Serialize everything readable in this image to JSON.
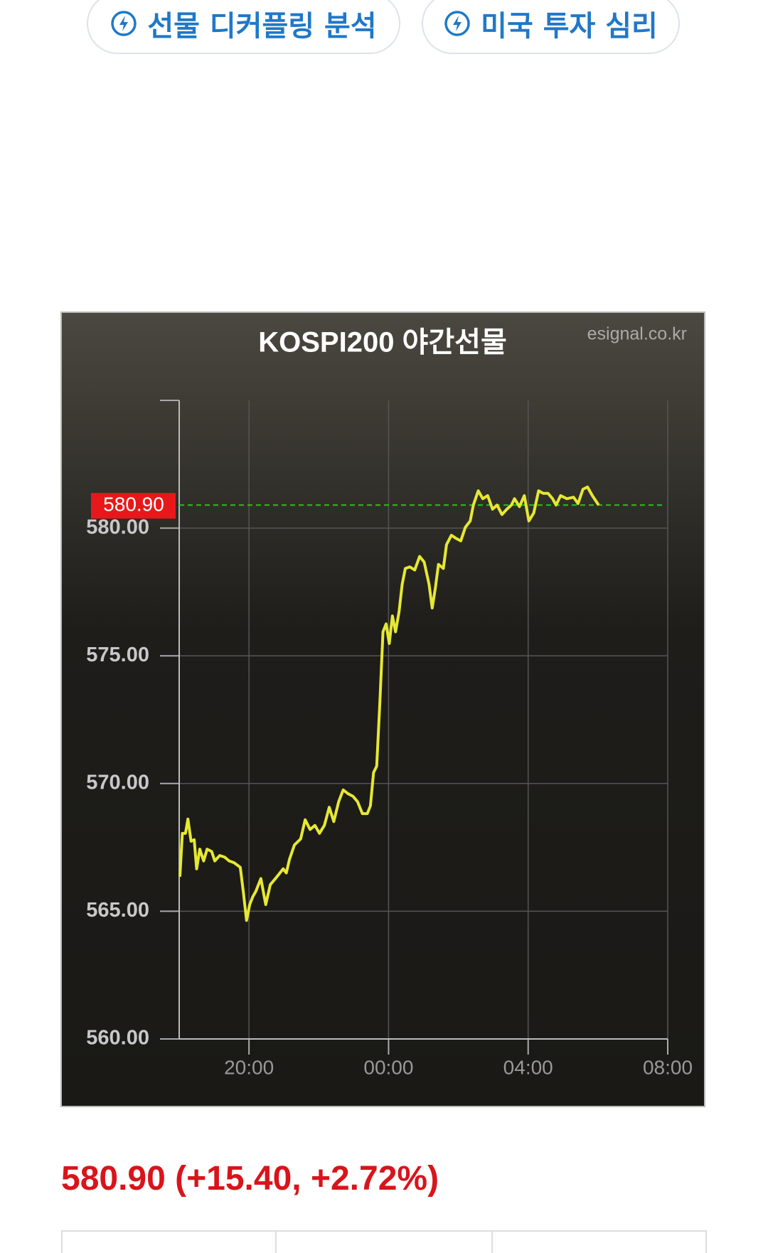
{
  "buttons": [
    "선물 디커플링 분석",
    "미국 투자 심리"
  ],
  "chart_data": {
    "type": "line",
    "title": "KOSPI200 야간선물",
    "source": "esignal.co.kr",
    "x": [
      18.02,
      18.09,
      18.18,
      18.25,
      18.34,
      18.43,
      18.5,
      18.59,
      18.7,
      18.8,
      18.93,
      19.02,
      19.16,
      19.3,
      19.43,
      19.57,
      19.75,
      19.84,
      19.93,
      20.02,
      20.11,
      20.2,
      20.34,
      20.48,
      20.61,
      20.8,
      20.98,
      21.07,
      21.16,
      21.3,
      21.48,
      21.61,
      21.75,
      21.89,
      22.02,
      22.16,
      22.3,
      22.43,
      22.57,
      22.7,
      22.84,
      22.98,
      23.11,
      23.25,
      23.39,
      23.48,
      23.57,
      23.66,
      23.75,
      23.84,
      23.93,
      24.02,
      24.11,
      24.2,
      24.3,
      24.39,
      24.48,
      24.61,
      24.75,
      24.89,
      25.02,
      25.16,
      25.25,
      25.34,
      25.43,
      25.57,
      25.66,
      25.8,
      25.93,
      26.07,
      26.2,
      26.34,
      26.43,
      26.57,
      26.7,
      26.84,
      26.98,
      27.11,
      27.25,
      27.39,
      27.52,
      27.61,
      27.75,
      27.89,
      28.02,
      28.16,
      28.3,
      28.43,
      28.57,
      28.7,
      28.8,
      28.93,
      29.11,
      29.3,
      29.43,
      29.57,
      29.7,
      29.84,
      30.02
    ],
    "series": [
      {
        "name": "KOSPI200 야간선물",
        "color": "#e6e833",
        "values": [
          566.35,
          568.05,
          568.05,
          568.61,
          567.74,
          567.8,
          566.66,
          567.43,
          566.97,
          567.43,
          567.34,
          566.97,
          567.18,
          567.12,
          566.97,
          566.9,
          566.72,
          565.73,
          564.64,
          565.26,
          565.57,
          565.79,
          566.28,
          565.26,
          566.04,
          566.35,
          566.66,
          566.5,
          567.03,
          567.59,
          567.83,
          568.58,
          568.2,
          568.36,
          568.05,
          568.36,
          569.07,
          568.51,
          569.29,
          569.75,
          569.6,
          569.5,
          569.29,
          568.82,
          568.82,
          569.13,
          570.43,
          570.68,
          573.16,
          575.94,
          576.25,
          575.48,
          576.56,
          575.94,
          576.72,
          577.8,
          578.42,
          578.48,
          578.36,
          578.89,
          578.67,
          577.8,
          576.87,
          577.65,
          578.58,
          578.42,
          579.35,
          579.72,
          579.6,
          579.5,
          580.03,
          580.28,
          580.9,
          581.46,
          581.15,
          581.27,
          580.74,
          580.9,
          580.53,
          580.74,
          580.9,
          581.15,
          580.84,
          581.27,
          580.28,
          580.59,
          581.46,
          581.36,
          581.36,
          581.15,
          580.9,
          581.27,
          581.15,
          581.21,
          580.96,
          581.52,
          581.61,
          581.27,
          580.9
        ]
      }
    ],
    "reference_line": {
      "value": 580.9,
      "label": "580.90",
      "color": "#22c322",
      "label_color": "#e8181a"
    },
    "xlim": [
      18,
      32
    ],
    "xticks": [
      {
        "value": 20,
        "label": "20:00"
      },
      {
        "value": 24,
        "label": "00:00"
      },
      {
        "value": 28,
        "label": "04:00"
      },
      {
        "value": 32,
        "label": "08:00"
      }
    ],
    "ylim": [
      560,
      585
    ],
    "yticks": [
      {
        "value": 560,
        "label": "560.00"
      },
      {
        "value": 565,
        "label": "565.00"
      },
      {
        "value": 570,
        "label": "570.00"
      },
      {
        "value": 575,
        "label": "575.00"
      },
      {
        "value": 580,
        "label": "580.00"
      }
    ],
    "grid": true
  },
  "summary": "580.90 (+15.40, +2.72%)"
}
